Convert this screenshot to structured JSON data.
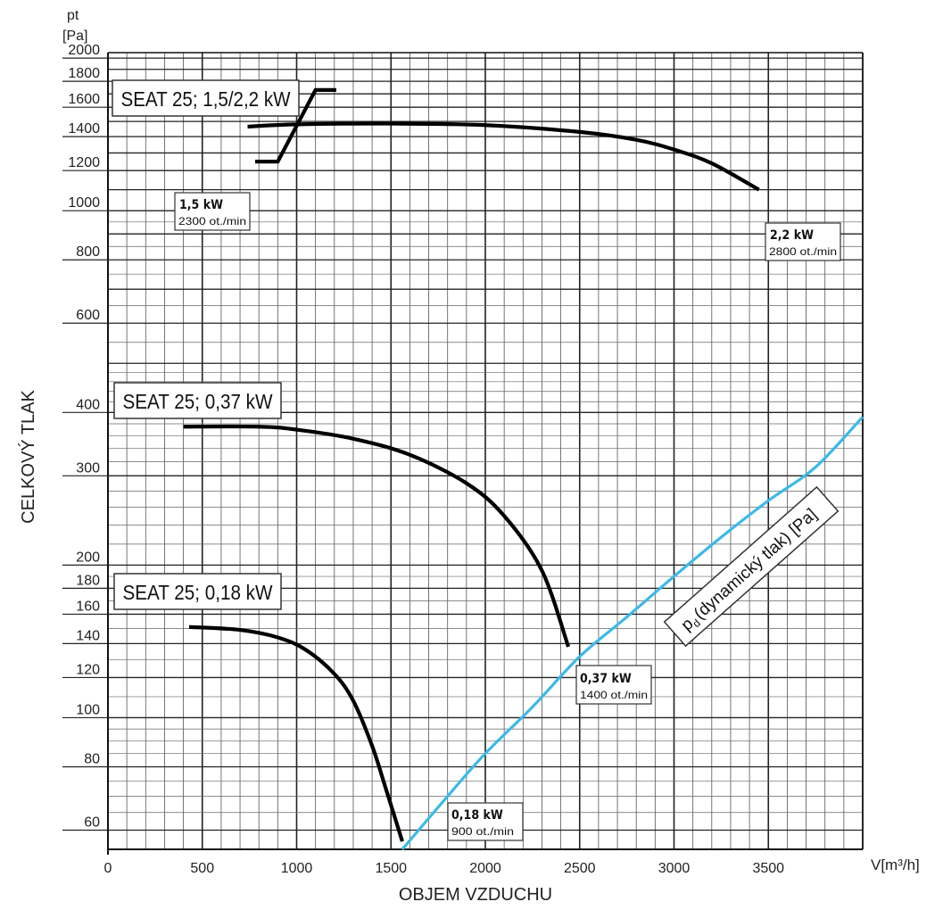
{
  "chart_data": {
    "type": "line",
    "x_axis": {
      "label": "OBJEM VZDUCHU",
      "unit": "V[m³/h]",
      "range": [
        0,
        4000
      ],
      "scale": "linear",
      "tick_values": [
        0,
        500,
        1000,
        1500,
        2000,
        2500,
        3000,
        3500
      ],
      "tick_labels": [
        "0",
        "500",
        "1000",
        "1500",
        "2000",
        "2500",
        "3000",
        "3500"
      ]
    },
    "y_axis": {
      "label": "CELKOVÝ TLAK",
      "unit_line1": "pt",
      "unit_line2": "[Pa]",
      "range": [
        55,
        2050
      ],
      "scale": "log",
      "tick_values": [
        2000,
        1800,
        1600,
        1400,
        1200,
        1000,
        800,
        600,
        400,
        300,
        200,
        180,
        160,
        140,
        120,
        100,
        80,
        60
      ],
      "tick_labels": [
        "2000",
        "1800",
        "1600",
        "1400",
        "1200",
        "1000",
        "800",
        "600",
        "400",
        "300",
        "200",
        "180",
        "160",
        "140",
        "120",
        "100",
        "80",
        "60"
      ]
    },
    "grid": true,
    "labels": [
      {
        "text": "SEAT 25; 1,5/2,2 kW"
      },
      {
        "text": "SEAT 25; 0,37 kW"
      },
      {
        "text": "SEAT 25; 0,18 kW"
      }
    ],
    "series": [
      {
        "color": "#000000",
        "points": [
          [
            740,
            1465
          ],
          [
            1000,
            1480
          ],
          [
            1500,
            1485
          ],
          [
            2000,
            1475
          ],
          [
            2500,
            1430
          ],
          [
            2800,
            1380
          ],
          [
            3000,
            1320
          ],
          [
            3200,
            1240
          ],
          [
            3450,
            1100
          ]
        ],
        "label": {
          "title": "2,2  kW",
          "sub": "2800 ot./min"
        }
      },
      {
        "color": "#000000",
        "points": [
          [
            780,
            1250
          ],
          [
            900,
            1250
          ],
          [
            1100,
            1730
          ],
          [
            1210,
            1730
          ]
        ],
        "label": {
          "title": "1,5  kW",
          "sub": "2300 ot./min"
        }
      },
      {
        "color": "#000000",
        "points": [
          [
            400,
            375
          ],
          [
            800,
            375
          ],
          [
            1000,
            370
          ],
          [
            1300,
            355
          ],
          [
            1600,
            330
          ],
          [
            1900,
            290
          ],
          [
            2100,
            250
          ],
          [
            2300,
            195
          ],
          [
            2440,
            138
          ]
        ],
        "label": {
          "title": "0,37  kW",
          "sub": "1400 ot./min"
        }
      },
      {
        "color": "#000000",
        "points": [
          [
            430,
            151
          ],
          [
            700,
            149
          ],
          [
            900,
            144
          ],
          [
            1050,
            136
          ],
          [
            1200,
            122
          ],
          [
            1300,
            108
          ],
          [
            1400,
            88
          ],
          [
            1470,
            73
          ],
          [
            1560,
            57
          ]
        ],
        "label": {
          "title": "0,18  kW",
          "sub": "900 ot./min"
        }
      },
      {
        "name": "(dynamický tlak) [Pa]",
        "name_prefix": "p",
        "name_subscript": "d",
        "color": "#3cb9e8",
        "points": [
          [
            1560,
            55
          ],
          [
            1800,
            70
          ],
          [
            2000,
            85
          ],
          [
            2250,
            105
          ],
          [
            2500,
            132
          ],
          [
            2750,
            158
          ],
          [
            3000,
            190
          ],
          [
            3250,
            227
          ],
          [
            3500,
            268
          ],
          [
            3750,
            312
          ],
          [
            4000,
            392
          ]
        ]
      }
    ]
  }
}
